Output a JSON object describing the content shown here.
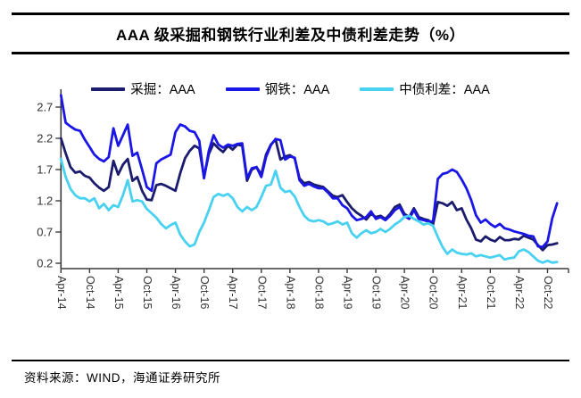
{
  "title": "AAA 级采掘和钢铁行业利差及中债利差走势（%）",
  "footer": {
    "source_note": "资料来源：WIND，海通证券研究所"
  },
  "colors": {
    "mining": "#1C1C6E",
    "steel": "#1A16E6",
    "chinabond": "#48D1F0",
    "axis": "#3A3A3A",
    "tick_label": "#333333",
    "rule": "#000000"
  },
  "chart_data": {
    "type": "line",
    "title": "AAA 级采掘和钢铁行业利差及中债利差走势（%）",
    "x_start": "2014-04",
    "x_interval": "monthly",
    "x_tick_labels": [
      "Apr-14",
      "Oct-14",
      "Apr-15",
      "Oct-15",
      "Apr-16",
      "Oct-16",
      "Apr-17",
      "Oct-17",
      "Apr-18",
      "Oct-18",
      "Apr-19",
      "Oct-19",
      "Apr-20",
      "Oct-20",
      "Apr-21",
      "Oct-21",
      "Apr-22",
      "Oct-22"
    ],
    "y_ticks": [
      "2.7",
      "2.2",
      "1.7",
      "1.2",
      "0.7",
      "0.2"
    ],
    "ylim": [
      0.05,
      2.95
    ],
    "grid": false,
    "legend_position": "top",
    "series": [
      {
        "name": "采掘：AAA",
        "color_key": "mining",
        "values": [
          2.2,
          1.96,
          1.74,
          1.65,
          1.67,
          1.6,
          1.57,
          1.48,
          1.41,
          1.36,
          1.42,
          1.84,
          1.62,
          1.78,
          1.87,
          1.52,
          1.58,
          1.36,
          1.22,
          1.21,
          1.45,
          1.47,
          1.44,
          1.4,
          1.36,
          1.64,
          1.88,
          2.0,
          2.08,
          2.04,
          1.58,
          1.95,
          2.12,
          2.04,
          1.98,
          2.08,
          2.02,
          2.1,
          2.08,
          1.52,
          1.7,
          1.74,
          1.62,
          1.94,
          2.1,
          2.18,
          1.86,
          1.91,
          1.93,
          1.88,
          1.56,
          1.48,
          1.5,
          1.46,
          1.44,
          1.42,
          1.35,
          1.28,
          1.26,
          1.29,
          1.18,
          1.08,
          1.01,
          0.96,
          0.9,
          0.99,
          0.94,
          0.96,
          0.91,
          0.99,
          1.1,
          1.14,
          0.99,
          0.94,
          1.08,
          0.94,
          0.91,
          0.89,
          0.82,
          1.18,
          1.16,
          1.12,
          1.18,
          1.05,
          1.08,
          0.9,
          0.76,
          0.58,
          0.55,
          0.63,
          0.58,
          0.55,
          0.62,
          0.57,
          0.57,
          0.59,
          0.58,
          0.64,
          0.61,
          0.58,
          0.49,
          0.41,
          0.49,
          0.5,
          0.52
        ]
      },
      {
        "name": "钢铁：AAA",
        "color_key": "steel",
        "values": [
          2.89,
          2.45,
          2.39,
          2.34,
          2.32,
          2.18,
          2.06,
          1.94,
          1.87,
          1.83,
          1.9,
          2.36,
          2.08,
          2.25,
          2.42,
          1.92,
          1.97,
          1.7,
          1.42,
          1.36,
          1.8,
          1.86,
          1.9,
          1.94,
          2.3,
          2.42,
          2.39,
          2.32,
          2.3,
          2.16,
          1.56,
          2.0,
          2.25,
          2.1,
          2.05,
          2.1,
          2.08,
          2.11,
          2.12,
          1.56,
          1.72,
          1.74,
          1.58,
          1.9,
          2.09,
          2.19,
          2.17,
          1.86,
          1.91,
          1.89,
          1.53,
          1.44,
          1.47,
          1.43,
          1.4,
          1.4,
          1.33,
          1.24,
          1.24,
          1.13,
          1.08,
          0.96,
          0.89,
          0.91,
          0.94,
          1.03,
          0.91,
          0.94,
          0.89,
          0.96,
          1.05,
          1.1,
          0.96,
          0.91,
          1.05,
          0.91,
          0.89,
          0.87,
          0.87,
          1.55,
          1.63,
          1.65,
          1.7,
          1.66,
          1.54,
          1.4,
          1.21,
          0.97,
          0.85,
          0.9,
          0.83,
          0.78,
          0.83,
          0.76,
          0.74,
          0.71,
          0.69,
          0.67,
          0.64,
          0.63,
          0.47,
          0.46,
          0.55,
          0.92,
          1.16
        ]
      },
      {
        "name": "中债利差：AAA",
        "color_key": "chinabond",
        "values": [
          1.87,
          1.58,
          1.39,
          1.29,
          1.24,
          1.24,
          1.19,
          1.24,
          1.08,
          1.15,
          1.05,
          1.13,
          1.1,
          1.29,
          1.53,
          1.19,
          1.21,
          1.19,
          1.07,
          1.0,
          0.93,
          0.83,
          0.76,
          0.81,
          0.85,
          0.66,
          0.55,
          0.47,
          0.5,
          0.7,
          0.85,
          1.05,
          1.26,
          1.31,
          1.28,
          1.31,
          1.24,
          1.1,
          1.03,
          1.1,
          1.05,
          1.1,
          1.26,
          1.44,
          1.46,
          1.68,
          1.41,
          1.34,
          1.36,
          1.27,
          1.1,
          0.96,
          0.89,
          0.87,
          0.89,
          0.87,
          0.82,
          0.84,
          0.87,
          0.82,
          0.85,
          0.68,
          0.61,
          0.68,
          0.73,
          0.68,
          0.7,
          0.75,
          0.7,
          0.75,
          0.82,
          0.87,
          0.94,
          0.96,
          0.91,
          0.87,
          0.82,
          0.84,
          0.8,
          0.62,
          0.46,
          0.35,
          0.42,
          0.37,
          0.35,
          0.34,
          0.36,
          0.31,
          0.33,
          0.31,
          0.29,
          0.31,
          0.33,
          0.26,
          0.28,
          0.29,
          0.39,
          0.42,
          0.38,
          0.31,
          0.24,
          0.21,
          0.24,
          0.21,
          0.22
        ]
      }
    ]
  }
}
